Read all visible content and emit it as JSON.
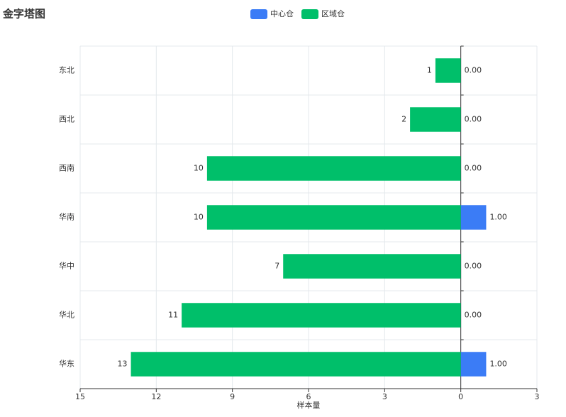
{
  "chart_data": {
    "type": "bar",
    "orientation": "horizontal",
    "title": "金字塔图",
    "xlabel": "样本量",
    "categories": [
      "东北",
      "西北",
      "西南",
      "华南",
      "华中",
      "华北",
      "华东"
    ],
    "series": [
      {
        "name": "中心仓",
        "color": "#3b7cf6",
        "values": [
          0,
          0,
          0,
          1,
          0,
          0,
          1
        ],
        "value_labels": [
          "0.00",
          "0.00",
          "0.00",
          "1.00",
          "0.00",
          "0.00",
          "1.00"
        ]
      },
      {
        "name": "区域仓",
        "color": "#00bf6a",
        "values": [
          -1,
          -2,
          -10,
          -10,
          -7,
          -11,
          -13
        ],
        "value_labels": [
          "1",
          "2",
          "10",
          "10",
          "7",
          "11",
          "13"
        ]
      }
    ],
    "xlim": [
      -15,
      3
    ],
    "xticks": [
      {
        "value": -15,
        "label": "15"
      },
      {
        "value": -12,
        "label": "12"
      },
      {
        "value": -9,
        "label": "9"
      },
      {
        "value": -6,
        "label": "6"
      },
      {
        "value": -3,
        "label": "3"
      },
      0,
      3
    ],
    "grid": true
  }
}
